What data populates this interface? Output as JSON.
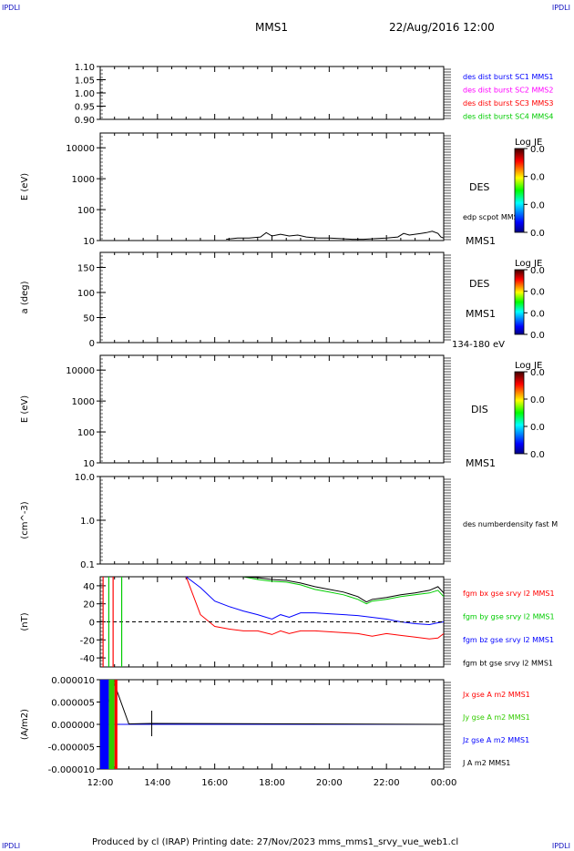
{
  "corners": {
    "tl": "IPDLI",
    "tr": "IPDLI",
    "bl": "IPDLI",
    "br": "IPDLI"
  },
  "header": {
    "spacecraft": "MMS1",
    "datetime": "22/Aug/2016 12:00"
  },
  "footer": {
    "text": "Produced by cl (IRAP)   Printing date: 27/Nov/2023   mms_mms1_srvy_vue_web1.cl"
  },
  "xaxis": {
    "ticks": [
      "12:00",
      "14:00",
      "16:00",
      "18:00",
      "20:00",
      "22:00",
      "00:00"
    ]
  },
  "colors": {
    "sc1": "#0000ff",
    "sc2": "#ff00ff",
    "sc3": "#ff0000",
    "sc4": "#00cc00",
    "fgm_bx": "#ff0000",
    "fgm_by": "#00cc00",
    "fgm_bz": "#0000ff",
    "fgm_bt": "#000000",
    "jx": "#ff0000",
    "jy": "#33cc00",
    "jz": "#0000ff",
    "jt": "#000000"
  },
  "panels": {
    "p1": {
      "ticks": [
        "1.10",
        "1.05",
        "1.00",
        "0.95",
        "0.90"
      ],
      "legend": [
        "des dist burst SC1 MMS1",
        "des dist burst SC2 MMS2",
        "des dist burst SC3 MMS3",
        "des dist burst SC4 MMS4"
      ]
    },
    "p2": {
      "ylabel": "E (eV)",
      "ticks": [
        "10000",
        "1000",
        "100",
        "10"
      ],
      "label1": "DES",
      "label2": "edp scpot MMS1",
      "label3": "MMS1",
      "cbar": {
        "title": "Log JE",
        "ticks": [
          "0.0",
          "0.0",
          "0.0",
          "0.0"
        ]
      }
    },
    "p3": {
      "ylabel": "a (deg)",
      "ticks": [
        "150",
        "100",
        "50",
        "0"
      ],
      "label1": "DES",
      "label2": "MMS1",
      "label3": "134-180 eV",
      "cbar": {
        "title": "Log JE",
        "ticks": [
          "0.0",
          "0.0",
          "0.0",
          "0.0"
        ]
      }
    },
    "p4": {
      "ylabel": "E (eV)",
      "ticks": [
        "10000",
        "1000",
        "100",
        "10"
      ],
      "label1": "DIS",
      "label3": "MMS1",
      "cbar": {
        "title": "Log JE",
        "ticks": [
          "0.0",
          "0.0",
          "0.0",
          "0.0"
        ]
      }
    },
    "p5": {
      "ylabel": "(cm^-3)",
      "ticks": [
        "10.0",
        "1.0",
        "0.1"
      ],
      "label1": "des numberdensity fast M"
    },
    "p6": {
      "ylabel": "(nT)",
      "ticks": [
        "40",
        "20",
        "0",
        "-20",
        "-40"
      ],
      "legend": [
        "fgm bx gse srvy l2 MMS1",
        "fgm by gse srvy l2 MMS1",
        "fgm bz gse srvy l2 MMS1",
        "fgm bt gse srvy l2 MMS1"
      ]
    },
    "p7": {
      "ylabel": "(A/m2)",
      "ticks": [
        "0.000010",
        "0.000005",
        "0.000000",
        "-0.000005",
        "-0.000010"
      ],
      "legend": [
        "Jx gse A m2 MMS1",
        "Jy gse A m2 MMS1",
        "Jz gse A m2 MMS1",
        "J A m2 MMS1"
      ]
    }
  },
  "chart_data": [
    {
      "type": "line",
      "panel": "des dist burst",
      "ylim": [
        0.9,
        1.1
      ],
      "series": []
    },
    {
      "type": "line",
      "panel": "DES energy",
      "ylabel": "E (eV)",
      "yscale": "log",
      "ylim": [
        10,
        30000
      ],
      "series": [
        {
          "name": "edp scpot MMS1",
          "x": [
            16.4,
            16.8,
            17.2,
            17.6,
            17.8,
            18.0,
            18.3,
            18.6,
            18.9,
            19.2,
            19.6,
            20.0,
            20.4,
            20.8,
            21.2,
            21.6,
            22.0,
            22.4,
            22.6,
            22.8,
            23.0,
            23.2,
            23.4,
            23.6,
            23.8,
            23.9,
            24.0
          ],
          "y": [
            11,
            12,
            12,
            13,
            18,
            14,
            16,
            14,
            15,
            13,
            12,
            12,
            11.5,
            11,
            11,
            11.5,
            12,
            13,
            17,
            15,
            16,
            17,
            18,
            20,
            17,
            13,
            12
          ]
        }
      ]
    },
    {
      "type": "line",
      "panel": "DES pitch angle",
      "ylabel": "a (deg)",
      "ylim": [
        0,
        180
      ],
      "series": []
    },
    {
      "type": "line",
      "panel": "DIS energy",
      "ylabel": "E (eV)",
      "yscale": "log",
      "ylim": [
        10,
        30000
      ],
      "series": []
    },
    {
      "type": "line",
      "panel": "density",
      "ylabel": "(cm^-3)",
      "yscale": "log",
      "ylim": [
        0.1,
        10
      ],
      "series": []
    },
    {
      "type": "line",
      "panel": "fgm",
      "ylabel": "(nT)",
      "ylim": [
        -50,
        50
      ],
      "series": [
        {
          "name": "fgm bx gse srvy l2 MMS1",
          "x": [
            15.0,
            15.5,
            16.0,
            16.5,
            17.0,
            17.5,
            18.0,
            18.3,
            18.6,
            19.0,
            19.5,
            20.0,
            20.5,
            21.0,
            21.5,
            22.0,
            22.5,
            23.0,
            23.5,
            23.8,
            24.0
          ],
          "y": [
            50,
            8,
            -5,
            -8,
            -10,
            -10,
            -14,
            -10,
            -13,
            -10,
            -10,
            -11,
            -12,
            -13,
            -16,
            -13,
            -15,
            -17,
            -19,
            -18,
            -13
          ]
        },
        {
          "name": "fgm by gse srvy l2 MMS1",
          "x": [
            17.0,
            17.5,
            18.0,
            18.5,
            19.0,
            19.5,
            20.0,
            20.5,
            21.0,
            21.3,
            21.5,
            22.0,
            22.5,
            23.0,
            23.5,
            23.8,
            24.0
          ],
          "y": [
            50,
            47,
            45,
            44,
            41,
            36,
            33,
            30,
            25,
            20,
            23,
            25,
            28,
            30,
            32,
            35,
            28
          ]
        },
        {
          "name": "fgm bz gse srvy l2 MMS1",
          "x": [
            15.0,
            15.5,
            16.0,
            16.5,
            17.0,
            17.5,
            18.0,
            18.3,
            18.6,
            19.0,
            19.5,
            20.0,
            21.0,
            22.0,
            22.5,
            23.0,
            23.5,
            23.8,
            24.0
          ],
          "y": [
            50,
            38,
            23,
            17,
            12,
            8,
            3,
            8,
            5,
            10,
            10,
            9,
            7,
            3,
            0,
            -2,
            -3,
            -1,
            0
          ]
        },
        {
          "name": "fgm bt gse srvy l2 MMS1",
          "x": [
            17.0,
            17.5,
            18.0,
            18.5,
            19.0,
            19.5,
            20.0,
            20.5,
            21.0,
            21.3,
            21.5,
            22.0,
            22.5,
            23.0,
            23.5,
            23.8,
            24.0
          ],
          "y": [
            50,
            49,
            47,
            46,
            43,
            39,
            36,
            33,
            28,
            22,
            25,
            27,
            30,
            32,
            35,
            39,
            32
          ]
        }
      ]
    },
    {
      "type": "line",
      "panel": "current density",
      "ylabel": "(A/m2)",
      "ylim": [
        -1e-05,
        1e-05
      ],
      "series": [
        {
          "name": "Jx gse A m2 MMS1",
          "x": [
            12.0,
            12.5,
            13.0,
            24.0
          ],
          "y": [
            0.0,
            0.0,
            0.0,
            0.0
          ]
        },
        {
          "name": "Jy gse A m2 MMS1",
          "x": [
            12.0,
            12.5,
            13.0,
            24.0
          ],
          "y": [
            0.0,
            0.0,
            0.0,
            0.0
          ]
        },
        {
          "name": "Jz gse A m2 MMS1",
          "x": [
            12.0,
            12.5,
            13.0,
            24.0
          ],
          "y": [
            0.0,
            0.0,
            0.0,
            0.0
          ]
        },
        {
          "name": "J A m2 MMS1",
          "x": [
            12.0,
            12.5,
            13.0,
            13.8,
            24.0
          ],
          "y": [
            0.0,
            9e-06,
            1e-07,
            2e-07,
            0.0
          ]
        }
      ]
    }
  ]
}
